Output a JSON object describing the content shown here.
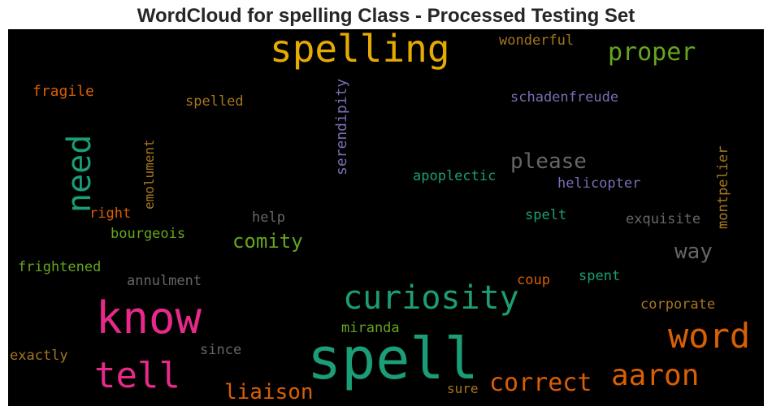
{
  "title": "WordCloud for spelling Class - Processed Testing Set",
  "colors": {
    "teal": "#1b9e77",
    "orange": "#d95f02",
    "purple": "#7570b3",
    "pink": "#e7298a",
    "green": "#66a61e",
    "gold": "#e6ab02",
    "brown": "#a6761d",
    "gray": "#666666"
  },
  "words": {
    "spelling": "spelling",
    "proper": "proper",
    "wonderful": "wonderful",
    "fragile": "fragile",
    "spelled": "spelled",
    "schadenfreude": "schadenfreude",
    "serendipity": "serendipity",
    "emolument": "emolument",
    "need": "need",
    "please": "please",
    "montpelier": "montpelier",
    "apoplectic": "apoplectic",
    "helicopter": "helicopter",
    "right": "right",
    "help": "help",
    "spelt": "spelt",
    "exquisite": "exquisite",
    "bourgeois": "bourgeois",
    "comity": "comity",
    "way": "way",
    "frightened": "frightened",
    "annulment": "annulment",
    "spent": "spent",
    "coup": "coup",
    "curiosity": "curiosity",
    "know": "know",
    "corporate": "corporate",
    "miranda": "miranda",
    "word": "word",
    "exactly": "exactly",
    "since": "since",
    "spell": "spell",
    "tell": "tell",
    "aaron": "aaron",
    "correct": "correct",
    "liaison": "liaison",
    "sure": "sure"
  }
}
